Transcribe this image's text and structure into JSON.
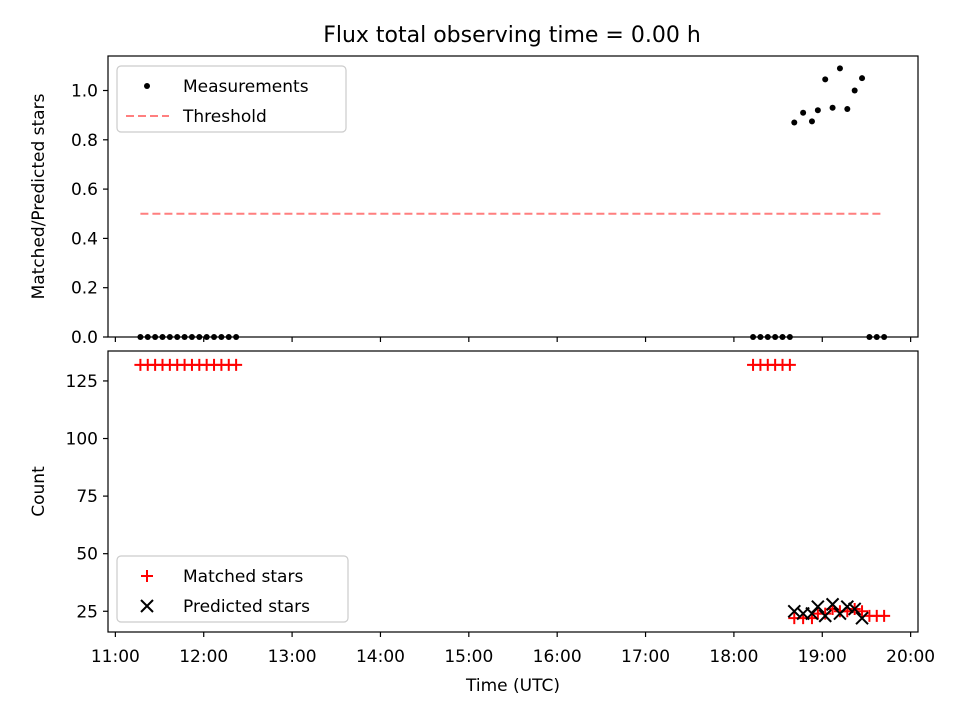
{
  "title": "Flux total observing time = 0.00 h",
  "chart_data": [
    {
      "type": "scatter",
      "ylabel": "Matched/Predicted stars",
      "xlabel": "",
      "xlim": [
        "10:55",
        "20:05"
      ],
      "ylim": [
        0,
        1.14
      ],
      "yticks": [
        "0.0",
        "0.2",
        "0.4",
        "0.6",
        "0.8",
        "1.0"
      ],
      "ytick_values": [
        0,
        0.2,
        0.4,
        0.6,
        0.8,
        1.0
      ],
      "legend_position": "top-left",
      "series": [
        {
          "name": "Measurements",
          "marker": "dot",
          "color": "#000000",
          "points": [
            [
              "11:17",
              0
            ],
            [
              "11:22",
              0
            ],
            [
              "11:27",
              0
            ],
            [
              "11:32",
              0
            ],
            [
              "11:37",
              0
            ],
            [
              "11:42",
              0
            ],
            [
              "11:47",
              0
            ],
            [
              "11:52",
              0
            ],
            [
              "11:57",
              0
            ],
            [
              "12:02",
              0
            ],
            [
              "12:07",
              0
            ],
            [
              "12:12",
              0
            ],
            [
              "12:17",
              0
            ],
            [
              "12:22",
              0
            ],
            [
              "18:13",
              0
            ],
            [
              "18:18",
              0
            ],
            [
              "18:23",
              0
            ],
            [
              "18:28",
              0
            ],
            [
              "18:33",
              0
            ],
            [
              "18:38",
              0
            ],
            [
              "18:41",
              0.87
            ],
            [
              "18:47",
              0.91
            ],
            [
              "18:53",
              0.875
            ],
            [
              "18:57",
              0.92
            ],
            [
              "19:02",
              1.045
            ],
            [
              "19:07",
              0.93
            ],
            [
              "19:12",
              1.09
            ],
            [
              "19:17",
              0.925
            ],
            [
              "19:22",
              1.0
            ],
            [
              "19:27",
              1.05
            ],
            [
              "19:32",
              0
            ],
            [
              "19:37",
              0
            ],
            [
              "19:42",
              0
            ]
          ]
        },
        {
          "name": "Threshold",
          "marker": "dashed-line",
          "color": "#ff7f7f",
          "points": [
            [
              "11:17",
              0.5
            ],
            [
              "19:42",
              0.5
            ]
          ]
        }
      ]
    },
    {
      "type": "scatter",
      "ylabel": "Count",
      "xlabel": "Time (UTC)",
      "xlim": [
        "10:55",
        "20:05"
      ],
      "ylim": [
        16,
        138
      ],
      "yticks": [
        "25",
        "50",
        "75",
        "100",
        "125"
      ],
      "ytick_values": [
        25,
        50,
        75,
        100,
        125
      ],
      "legend_position": "bottom-left",
      "series": [
        {
          "name": "Matched stars",
          "marker": "plus",
          "color": "#ff0000",
          "points": [
            [
              "11:17",
              132
            ],
            [
              "11:22",
              132
            ],
            [
              "11:27",
              132
            ],
            [
              "11:32",
              132
            ],
            [
              "11:37",
              132
            ],
            [
              "11:42",
              132
            ],
            [
              "11:47",
              132
            ],
            [
              "11:52",
              132
            ],
            [
              "11:57",
              132
            ],
            [
              "12:02",
              132
            ],
            [
              "12:07",
              132
            ],
            [
              "12:12",
              132
            ],
            [
              "12:17",
              132
            ],
            [
              "12:22",
              132
            ],
            [
              "18:13",
              132
            ],
            [
              "18:18",
              132
            ],
            [
              "18:23",
              132
            ],
            [
              "18:28",
              132
            ],
            [
              "18:33",
              132
            ],
            [
              "18:38",
              132
            ],
            [
              "18:41",
              22
            ],
            [
              "18:47",
              22
            ],
            [
              "18:53",
              22
            ],
            [
              "18:57",
              24
            ],
            [
              "19:02",
              24
            ],
            [
              "19:07",
              26
            ],
            [
              "19:12",
              25
            ],
            [
              "19:17",
              25
            ],
            [
              "19:22",
              26
            ],
            [
              "19:27",
              25
            ],
            [
              "19:32",
              23
            ],
            [
              "19:37",
              23
            ],
            [
              "19:42",
              23
            ]
          ]
        },
        {
          "name": "Predicted stars",
          "marker": "x",
          "color": "#000000",
          "points": [
            [
              "18:41",
              25
            ],
            [
              "18:47",
              24
            ],
            [
              "18:53",
              24
            ],
            [
              "18:57",
              27
            ],
            [
              "19:02",
              23
            ],
            [
              "19:07",
              28
            ],
            [
              "19:12",
              24
            ],
            [
              "19:17",
              27
            ],
            [
              "19:22",
              26
            ],
            [
              "19:27",
              22
            ]
          ]
        }
      ]
    }
  ],
  "xticks": [
    "11:00",
    "12:00",
    "13:00",
    "14:00",
    "15:00",
    "16:00",
    "17:00",
    "18:00",
    "19:00",
    "20:00"
  ]
}
